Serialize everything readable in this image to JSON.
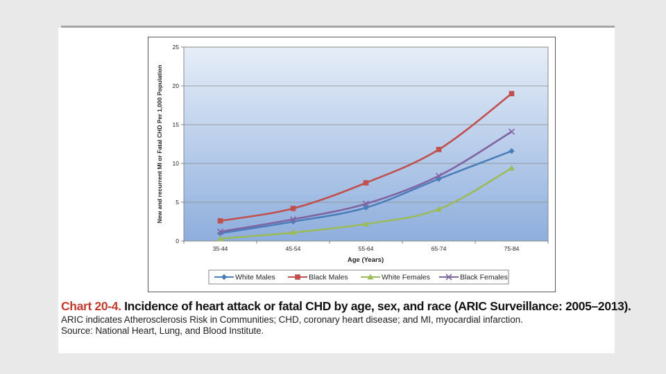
{
  "chart_data": {
    "type": "line",
    "categories": [
      "35-44",
      "45-54",
      "55-64",
      "65-74",
      "75-84"
    ],
    "series": [
      {
        "name": "White Males",
        "values": [
          1.0,
          2.5,
          4.3,
          8.0,
          11.6
        ],
        "color": "#4a7ebb",
        "marker": "diamond"
      },
      {
        "name": "Black Males",
        "values": [
          2.6,
          4.2,
          7.5,
          11.8,
          19.0
        ],
        "color": "#c0504d",
        "marker": "square"
      },
      {
        "name": "White Females",
        "values": [
          0.3,
          1.1,
          2.2,
          4.1,
          9.4
        ],
        "color": "#9bbb59",
        "marker": "triangle"
      },
      {
        "name": "Black Females",
        "values": [
          1.2,
          2.8,
          4.8,
          8.4,
          14.1
        ],
        "color": "#8064a2",
        "marker": "x"
      }
    ],
    "xlabel": "Age (Years)",
    "ylabel": "New and recurrent MI or Fatal CHD Per 1,000 Population",
    "ylim": [
      0,
      25
    ],
    "yticks": [
      0,
      5,
      10,
      15,
      20,
      25
    ],
    "grid": true,
    "legend": "bottom"
  },
  "caption": {
    "chart_number": "Chart 20-4.",
    "title": "Incidence of heart attack or fatal CHD by age, sex, and race (ARIC Surveillance: 2005–2013).",
    "note": "ARIC indicates Atherosclerosis Risk in Communities; CHD, coronary heart disease; and MI, myocardial infarction.",
    "source": "Source: National Heart, Lung, and Blood Institute."
  }
}
